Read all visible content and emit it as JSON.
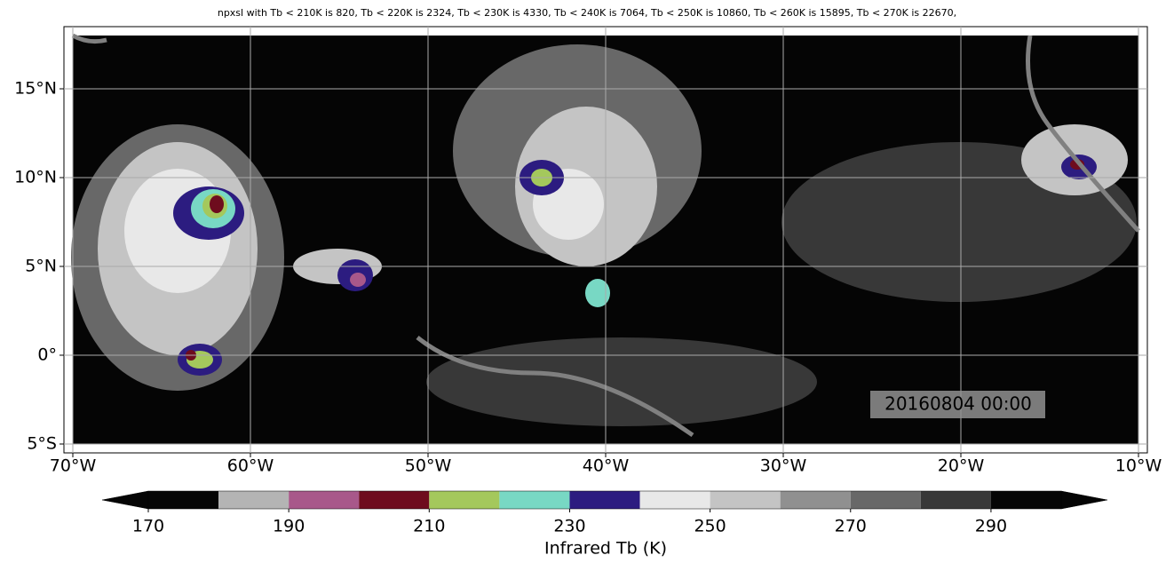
{
  "title": "npxsl with Tb < 210K is 820,  Tb < 220K is 2324,  Tb < 230K is 4330,  Tb < 240K is 7064,  Tb < 250K is 10860,  Tb < 260K is 15895,  Tb < 270K is 22670,",
  "map": {
    "xlim": [
      -70.5,
      -9.5
    ],
    "ylim": [
      -5.5,
      18.5
    ],
    "grid": true,
    "xticks": [
      {
        "value": -70,
        "label": "70°W"
      },
      {
        "value": -60,
        "label": "60°W"
      },
      {
        "value": -50,
        "label": "50°W"
      },
      {
        "value": -40,
        "label": "40°W"
      },
      {
        "value": -30,
        "label": "30°W"
      },
      {
        "value": -20,
        "label": "20°W"
      },
      {
        "value": -10,
        "label": "10°W"
      }
    ],
    "yticks": [
      {
        "value": -5,
        "label": "5°S"
      },
      {
        "value": 0,
        "label": "0°"
      },
      {
        "value": 5,
        "label": "5°N"
      },
      {
        "value": 10,
        "label": "10°N"
      },
      {
        "value": 15,
        "label": "15°N"
      }
    ]
  },
  "colorbar": {
    "label": "Infrared Tb (K)",
    "levels": [
      170,
      180,
      190,
      200,
      210,
      220,
      230,
      240,
      250,
      260,
      270,
      280,
      290,
      300
    ],
    "colors": [
      "#050505",
      "#b4b4b4",
      "#a8588a",
      "#6e0c1e",
      "#a4c85c",
      "#78d8c4",
      "#2c1c80",
      "#e8e8e8",
      "#c4c4c4",
      "#909090",
      "#686868",
      "#383838",
      "#050505"
    ],
    "ticks": [
      170,
      190,
      210,
      230,
      250,
      270,
      290
    ]
  },
  "timestamp": "20160804 00:00"
}
